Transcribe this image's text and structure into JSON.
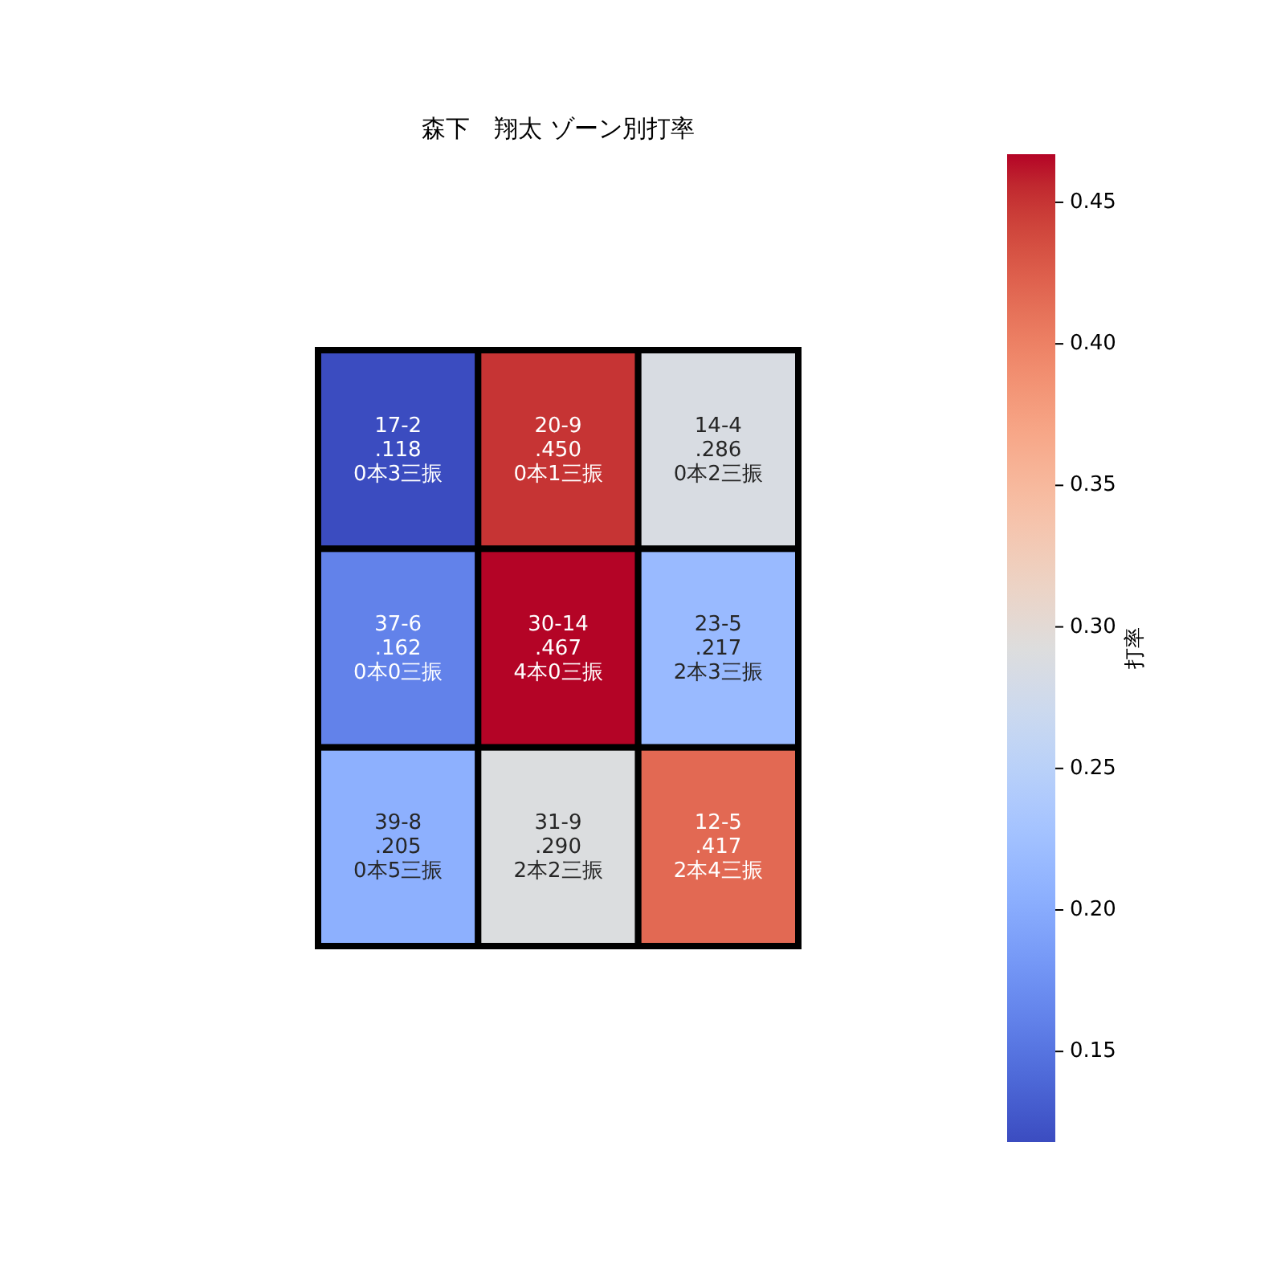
{
  "chart_data": {
    "type": "heatmap",
    "title": "森下　翔太 ゾーン別打率",
    "clabel": "打率",
    "categories": [
      null,
      null,
      null
    ],
    "y_categories": [
      null,
      null,
      null
    ],
    "cells": [
      [
        0.118,
        0.45,
        0.286
      ],
      [
        0.162,
        0.467,
        0.217
      ],
      [
        0.205,
        0.29,
        0.417
      ]
    ],
    "cell_labels": [
      [
        "17-2\n.118\n0本3三振",
        "20-9\n.450\n0本1三振",
        "14-4\n.286\n0本2三振"
      ],
      [
        "37-6\n.162\n0本0三振",
        "30-14\n.467\n4本0三振",
        "23-5\n.217\n2本3三振"
      ],
      [
        "39-8\n.205\n0本5三振",
        "31-9\n.290\n2本2三振",
        "12-5\n.417\n2本4三振"
      ]
    ],
    "clim": [
      0.118,
      0.467
    ],
    "cticks": [
      0.15,
      {
        "value": 0.2,
        "label": "0.20"
      },
      0.25,
      {
        "value": 0.3,
        "label": "0.30"
      },
      0.35,
      {
        "value": 0.4,
        "label": "0.40"
      },
      0.45
    ]
  }
}
